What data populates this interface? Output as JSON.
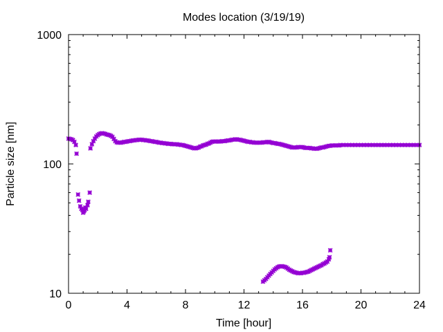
{
  "chart_data": {
    "type": "scatter",
    "title": "Modes location (3/19/19)",
    "xlabel": "Time [hour]",
    "ylabel": "Particle size [nm]",
    "xlim": [
      0,
      24
    ],
    "ylim": [
      10,
      1000
    ],
    "yscale": "log",
    "xticks": [
      0,
      4,
      8,
      12,
      16,
      20,
      24
    ],
    "yticks": [
      10,
      100,
      1000
    ],
    "xtick_labels": [
      "0",
      "4",
      "8",
      "12",
      "16",
      "20",
      "24"
    ],
    "ytick_labels": [
      "10",
      "100",
      "1000"
    ],
    "grid": false,
    "legend": "none",
    "marker_color": "#9400d3",
    "series": [
      {
        "points": [
          [
            0.0,
            157
          ],
          [
            0.1,
            156
          ],
          [
            0.2,
            155
          ],
          [
            0.3,
            153
          ],
          [
            0.4,
            148
          ],
          [
            0.5,
            140
          ],
          [
            0.55,
            120
          ],
          [
            1.5,
            132
          ],
          [
            1.6,
            142
          ],
          [
            1.7,
            150
          ],
          [
            1.8,
            157
          ],
          [
            1.9,
            163
          ],
          [
            2.0,
            167
          ],
          [
            2.1,
            170
          ],
          [
            2.2,
            172
          ],
          [
            2.3,
            173
          ],
          [
            2.4,
            172
          ],
          [
            2.5,
            171
          ],
          [
            2.6,
            169
          ],
          [
            2.7,
            168
          ],
          [
            2.8,
            167
          ],
          [
            2.9,
            165
          ],
          [
            3.0,
            162
          ],
          [
            3.1,
            156
          ],
          [
            3.2,
            150
          ],
          [
            3.3,
            147
          ],
          [
            3.4,
            146
          ],
          [
            3.5,
            146
          ],
          [
            3.6,
            146
          ],
          [
            3.7,
            147
          ],
          [
            3.8,
            148
          ],
          [
            3.9,
            148
          ],
          [
            4.0,
            149
          ],
          [
            4.1,
            150
          ],
          [
            4.2,
            150
          ],
          [
            4.3,
            151
          ],
          [
            4.4,
            152
          ],
          [
            4.5,
            152
          ],
          [
            4.6,
            153
          ],
          [
            4.7,
            153
          ],
          [
            4.8,
            154
          ],
          [
            4.9,
            154
          ],
          [
            5.0,
            154
          ],
          [
            5.1,
            153
          ],
          [
            5.2,
            153
          ],
          [
            5.3,
            152
          ],
          [
            5.4,
            152
          ],
          [
            5.5,
            151
          ],
          [
            5.6,
            150
          ],
          [
            5.7,
            150
          ],
          [
            5.8,
            149
          ],
          [
            5.9,
            148
          ],
          [
            6.0,
            148
          ],
          [
            6.1,
            147
          ],
          [
            6.2,
            146
          ],
          [
            6.3,
            146
          ],
          [
            6.4,
            145
          ],
          [
            6.5,
            145
          ],
          [
            6.6,
            144
          ],
          [
            6.7,
            144
          ],
          [
            6.8,
            143
          ],
          [
            6.9,
            143
          ],
          [
            7.0,
            143
          ],
          [
            7.1,
            142
          ],
          [
            7.2,
            142
          ],
          [
            7.3,
            142
          ],
          [
            7.4,
            142
          ],
          [
            7.5,
            141
          ],
          [
            7.6,
            141
          ],
          [
            7.7,
            140
          ],
          [
            7.8,
            140
          ],
          [
            7.9,
            139
          ],
          [
            8.0,
            138
          ],
          [
            8.1,
            137
          ],
          [
            8.2,
            136
          ],
          [
            8.3,
            135
          ],
          [
            8.4,
            134
          ],
          [
            8.5,
            133
          ],
          [
            8.6,
            132
          ],
          [
            8.7,
            132
          ],
          [
            8.8,
            133
          ],
          [
            8.9,
            134
          ],
          [
            9.0,
            136
          ],
          [
            9.1,
            137
          ],
          [
            9.2,
            139
          ],
          [
            9.3,
            140
          ],
          [
            9.4,
            141
          ],
          [
            9.5,
            143
          ],
          [
            9.6,
            144
          ],
          [
            9.7,
            146
          ],
          [
            9.8,
            148
          ],
          [
            9.9,
            149
          ],
          [
            10.0,
            149
          ],
          [
            10.1,
            149
          ],
          [
            10.2,
            149
          ],
          [
            10.3,
            149
          ],
          [
            10.4,
            149
          ],
          [
            10.5,
            150
          ],
          [
            10.6,
            150
          ],
          [
            10.7,
            150
          ],
          [
            10.8,
            151
          ],
          [
            10.9,
            152
          ],
          [
            11.0,
            152
          ],
          [
            11.1,
            153
          ],
          [
            11.2,
            154
          ],
          [
            11.3,
            154
          ],
          [
            11.4,
            155
          ],
          [
            11.5,
            155
          ],
          [
            11.6,
            154
          ],
          [
            11.7,
            154
          ],
          [
            11.8,
            153
          ],
          [
            11.9,
            152
          ],
          [
            12.0,
            151
          ],
          [
            12.1,
            150
          ],
          [
            12.2,
            149
          ],
          [
            12.3,
            148
          ],
          [
            12.4,
            148
          ],
          [
            12.5,
            147
          ],
          [
            12.6,
            147
          ],
          [
            12.7,
            146
          ],
          [
            12.8,
            146
          ],
          [
            12.9,
            146
          ],
          [
            13.0,
            146
          ],
          [
            13.1,
            146
          ],
          [
            13.2,
            146
          ],
          [
            13.3,
            147
          ],
          [
            13.4,
            147
          ],
          [
            13.5,
            147
          ],
          [
            13.6,
            148
          ],
          [
            13.7,
            148
          ],
          [
            13.8,
            147
          ],
          [
            13.9,
            146
          ],
          [
            14.0,
            145
          ],
          [
            14.1,
            145
          ],
          [
            14.2,
            144
          ],
          [
            14.3,
            143
          ],
          [
            14.4,
            143
          ],
          [
            14.5,
            142
          ],
          [
            14.6,
            141
          ],
          [
            14.7,
            140
          ],
          [
            14.8,
            139
          ],
          [
            14.9,
            138
          ],
          [
            15.0,
            137
          ],
          [
            15.1,
            136
          ],
          [
            15.2,
            135
          ],
          [
            15.3,
            134
          ],
          [
            15.4,
            134
          ],
          [
            15.5,
            134
          ],
          [
            15.6,
            134
          ],
          [
            15.7,
            135
          ],
          [
            15.8,
            135
          ],
          [
            15.9,
            135
          ],
          [
            16.0,
            135
          ],
          [
            16.1,
            134
          ],
          [
            16.2,
            133
          ],
          [
            16.3,
            133
          ],
          [
            16.4,
            133
          ],
          [
            16.5,
            133
          ],
          [
            16.6,
            132
          ],
          [
            16.7,
            132
          ],
          [
            16.8,
            131
          ],
          [
            16.9,
            131
          ],
          [
            17.0,
            131
          ],
          [
            17.1,
            132
          ],
          [
            17.2,
            133
          ],
          [
            17.3,
            134
          ],
          [
            17.4,
            134
          ],
          [
            17.5,
            135
          ],
          [
            17.6,
            136
          ],
          [
            17.7,
            137
          ],
          [
            17.8,
            138
          ],
          [
            17.9,
            138
          ],
          [
            18.0,
            139
          ],
          [
            18.1,
            139
          ],
          [
            18.2,
            139
          ],
          [
            18.3,
            139
          ],
          [
            18.4,
            139
          ],
          [
            18.5,
            139
          ],
          [
            18.6,
            140
          ],
          [
            18.8,
            140
          ],
          [
            19.0,
            140
          ],
          [
            19.2,
            140
          ],
          [
            19.4,
            140
          ],
          [
            19.6,
            140
          ],
          [
            19.8,
            140
          ],
          [
            20.0,
            140
          ],
          [
            20.2,
            140
          ],
          [
            20.4,
            140
          ],
          [
            20.6,
            140
          ],
          [
            20.8,
            140
          ],
          [
            21.0,
            140
          ],
          [
            21.2,
            140
          ],
          [
            21.4,
            140
          ],
          [
            21.6,
            140
          ],
          [
            21.8,
            140
          ],
          [
            22.0,
            140
          ],
          [
            22.2,
            140
          ],
          [
            22.4,
            140
          ],
          [
            22.6,
            140
          ],
          [
            22.8,
            140
          ],
          [
            23.0,
            140
          ],
          [
            23.2,
            140
          ],
          [
            23.4,
            140
          ],
          [
            23.6,
            140
          ],
          [
            23.8,
            140
          ],
          [
            24.0,
            140
          ]
        ]
      },
      {
        "points": [
          [
            0.65,
            58
          ],
          [
            0.72,
            52
          ],
          [
            0.8,
            47
          ],
          [
            0.88,
            45
          ],
          [
            0.95,
            44
          ],
          [
            1.0,
            42
          ],
          [
            1.05,
            43
          ],
          [
            1.1,
            44
          ],
          [
            1.15,
            46
          ],
          [
            1.2,
            45
          ],
          [
            1.3,
            48
          ],
          [
            1.35,
            51
          ],
          [
            1.45,
            60
          ]
        ]
      },
      {
        "points": [
          [
            13.3,
            12.3
          ],
          [
            13.4,
            12.6
          ],
          [
            13.5,
            12.9
          ],
          [
            13.6,
            13.3
          ],
          [
            13.7,
            13.7
          ],
          [
            13.8,
            14.1
          ],
          [
            13.9,
            14.5
          ],
          [
            14.0,
            14.9
          ],
          [
            14.1,
            15.3
          ],
          [
            14.2,
            15.6
          ],
          [
            14.3,
            15.9
          ],
          [
            14.4,
            16.1
          ],
          [
            14.5,
            16.2
          ],
          [
            14.6,
            16.2
          ],
          [
            14.7,
            16.1
          ],
          [
            14.8,
            16.0
          ],
          [
            14.9,
            15.8
          ],
          [
            15.0,
            15.5
          ],
          [
            15.1,
            15.2
          ],
          [
            15.2,
            15.0
          ],
          [
            15.3,
            14.8
          ],
          [
            15.4,
            14.6
          ],
          [
            15.5,
            14.5
          ],
          [
            15.6,
            14.4
          ],
          [
            15.7,
            14.3
          ],
          [
            15.8,
            14.3
          ],
          [
            15.9,
            14.3
          ],
          [
            16.0,
            14.4
          ],
          [
            16.1,
            14.4
          ],
          [
            16.2,
            14.5
          ],
          [
            16.3,
            14.6
          ],
          [
            16.4,
            14.7
          ],
          [
            16.5,
            14.9
          ],
          [
            16.6,
            15.1
          ],
          [
            16.7,
            15.3
          ],
          [
            16.8,
            15.5
          ],
          [
            16.9,
            15.7
          ],
          [
            17.0,
            15.9
          ],
          [
            17.1,
            16.1
          ],
          [
            17.2,
            16.3
          ],
          [
            17.3,
            16.5
          ],
          [
            17.4,
            16.8
          ],
          [
            17.5,
            17.0
          ],
          [
            17.6,
            17.3
          ],
          [
            17.7,
            17.6
          ],
          [
            17.8,
            18.3
          ],
          [
            17.85,
            19.0
          ],
          [
            17.9,
            21.5
          ]
        ]
      }
    ]
  }
}
